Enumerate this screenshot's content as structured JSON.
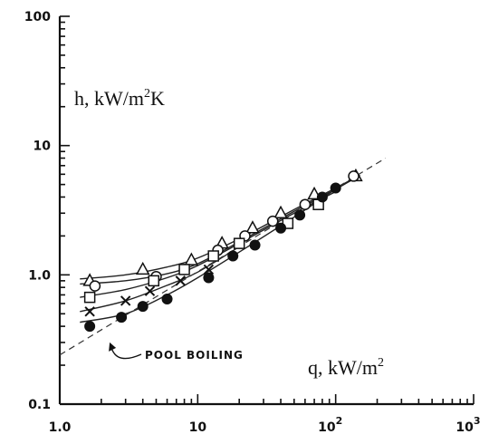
{
  "chart_data": {
    "type": "scatter",
    "title": "",
    "xscale": "log",
    "yscale": "log",
    "xlim": [
      1,
      1000
    ],
    "ylim": [
      0.1,
      100
    ],
    "xlabel": "q, kW/m",
    "xlabel_sup": "2",
    "ylabel": "h, kW/m",
    "ylabel_sup": "2",
    "ylabel_tail": "K",
    "x_ticks": [
      {
        "value": 1,
        "label": "1.0"
      },
      {
        "value": 10,
        "label": "10"
      },
      {
        "value": 100,
        "label": "10",
        "sup": "2"
      },
      {
        "value": 1000,
        "label": "10",
        "sup": "3"
      }
    ],
    "y_ticks": [
      {
        "value": 0.1,
        "label": "0.1"
      },
      {
        "value": 1,
        "label": "1.0"
      },
      {
        "value": 10,
        "label": "10"
      },
      {
        "value": 100,
        "label": "100"
      }
    ],
    "annotation": {
      "text": "POOL BOILING",
      "arrow_to": [
        2.3,
        0.3
      ]
    },
    "pool_boiling_line": {
      "x": [
        1.0,
        230
      ],
      "y": [
        0.24,
        8.0
      ]
    },
    "series": [
      {
        "marker": "triangle",
        "x": [
          1.65,
          4.0,
          9.0,
          15,
          25,
          40,
          70,
          140
        ],
        "y": [
          0.9,
          1.1,
          1.3,
          1.75,
          2.3,
          3.0,
          4.2,
          5.8
        ],
        "curve": [
          [
            1.4,
            0.93
          ],
          [
            3,
            1.0
          ],
          [
            6,
            1.15
          ],
          [
            10,
            1.35
          ],
          [
            20,
            1.9
          ],
          [
            50,
            3.2
          ],
          [
            100,
            4.7
          ],
          [
            150,
            5.9
          ]
        ]
      },
      {
        "marker": "circle-open",
        "x": [
          1.8,
          5.0,
          8.0,
          14,
          22,
          35,
          60,
          135
        ],
        "y": [
          0.82,
          0.97,
          1.1,
          1.55,
          2.0,
          2.6,
          3.5,
          5.8
        ],
        "curve": [
          [
            1.4,
            0.85
          ],
          [
            3,
            0.9
          ],
          [
            6,
            1.02
          ],
          [
            10,
            1.22
          ],
          [
            20,
            1.8
          ],
          [
            50,
            3.1
          ],
          [
            100,
            4.6
          ],
          [
            150,
            5.9
          ]
        ]
      },
      {
        "marker": "square",
        "x": [
          1.65,
          4.8,
          8.0,
          13,
          20,
          45,
          75
        ],
        "y": [
          0.67,
          0.9,
          1.1,
          1.4,
          1.75,
          2.5,
          3.5
        ],
        "curve": [
          [
            1.4,
            0.67
          ],
          [
            3,
            0.77
          ],
          [
            6,
            0.95
          ],
          [
            10,
            1.18
          ],
          [
            20,
            1.75
          ],
          [
            50,
            3.0
          ],
          [
            100,
            4.4
          ]
        ]
      },
      {
        "marker": "x",
        "x": [
          1.65,
          3.0,
          4.5,
          7.5,
          12
        ],
        "y": [
          0.52,
          0.63,
          0.75,
          0.9,
          1.1
        ],
        "curve": [
          [
            1.4,
            0.52
          ],
          [
            3,
            0.63
          ],
          [
            6,
            0.83
          ],
          [
            10,
            1.05
          ],
          [
            20,
            1.65
          ]
        ]
      },
      {
        "marker": "circle-filled",
        "x": [
          1.65,
          2.8,
          4.0,
          6.0,
          12,
          18,
          26,
          40,
          55,
          80,
          100
        ],
        "y": [
          0.4,
          0.47,
          0.57,
          0.65,
          0.95,
          1.4,
          1.7,
          2.3,
          2.9,
          4.0,
          4.7
        ],
        "curve": [
          [
            1.4,
            0.43
          ],
          [
            3,
            0.5
          ],
          [
            6,
            0.7
          ],
          [
            10,
            0.95
          ],
          [
            20,
            1.5
          ],
          [
            50,
            2.8
          ],
          [
            100,
            4.6
          ]
        ]
      }
    ]
  }
}
